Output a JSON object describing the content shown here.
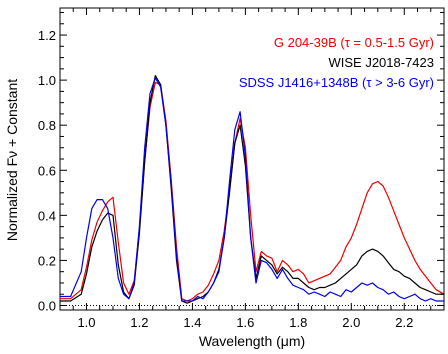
{
  "chart_data": {
    "type": "line",
    "xlabel": "Wavelength (μm)",
    "ylabel": "Normalized Fν + Constant",
    "xlim": [
      0.9,
      2.35
    ],
    "ylim": [
      -0.02,
      1.32
    ],
    "x_ticks": [
      1.0,
      1.2,
      1.4,
      1.6,
      1.8,
      2.0,
      2.2
    ],
    "x_tick_labels": [
      "1.0",
      "1.2",
      "1.4",
      "1.6",
      "1.8",
      "2.0",
      "2.2"
    ],
    "y_ticks": [
      0.0,
      0.2,
      0.4,
      0.6,
      0.8,
      1.0,
      1.2
    ],
    "y_tick_labels": [
      "0.0",
      "0.2",
      "0.4",
      "0.6",
      "0.8",
      "1.0",
      "1.2"
    ],
    "zero_line": {
      "y": 0.0,
      "style": "dotted"
    },
    "legend_position": "top-right",
    "series": [
      {
        "name": "G 204-39B (τ = 0.5-1.5 Gyr)",
        "color": "#ee0000",
        "x": [
          0.9,
          0.94,
          0.98,
          1.0,
          1.02,
          1.04,
          1.06,
          1.08,
          1.1,
          1.12,
          1.14,
          1.16,
          1.18,
          1.2,
          1.22,
          1.24,
          1.26,
          1.28,
          1.3,
          1.32,
          1.34,
          1.36,
          1.38,
          1.4,
          1.42,
          1.44,
          1.46,
          1.48,
          1.5,
          1.52,
          1.54,
          1.56,
          1.58,
          1.6,
          1.62,
          1.64,
          1.66,
          1.68,
          1.7,
          1.72,
          1.74,
          1.76,
          1.78,
          1.8,
          1.82,
          1.84,
          1.86,
          1.88,
          1.9,
          1.92,
          1.94,
          1.96,
          1.98,
          2.0,
          2.02,
          2.04,
          2.06,
          2.08,
          2.1,
          2.12,
          2.14,
          2.16,
          2.18,
          2.2,
          2.22,
          2.24,
          2.26,
          2.28,
          2.3,
          2.32,
          2.35
        ],
        "y": [
          0.03,
          0.03,
          0.07,
          0.17,
          0.29,
          0.37,
          0.42,
          0.46,
          0.48,
          0.28,
          0.1,
          0.05,
          0.11,
          0.34,
          0.64,
          0.88,
          0.99,
          0.98,
          0.82,
          0.56,
          0.26,
          0.03,
          0.02,
          0.03,
          0.05,
          0.06,
          0.09,
          0.14,
          0.2,
          0.33,
          0.51,
          0.72,
          0.83,
          0.7,
          0.4,
          0.15,
          0.24,
          0.22,
          0.21,
          0.15,
          0.2,
          0.18,
          0.15,
          0.16,
          0.14,
          0.1,
          0.11,
          0.12,
          0.13,
          0.14,
          0.17,
          0.2,
          0.26,
          0.3,
          0.36,
          0.43,
          0.5,
          0.54,
          0.55,
          0.53,
          0.48,
          0.42,
          0.36,
          0.3,
          0.25,
          0.2,
          0.16,
          0.13,
          0.1,
          0.07,
          0.05
        ]
      },
      {
        "name": "WISE J2018-7423",
        "color": "#000000",
        "x": [
          0.9,
          0.94,
          0.98,
          1.0,
          1.02,
          1.04,
          1.06,
          1.08,
          1.1,
          1.12,
          1.14,
          1.16,
          1.18,
          1.2,
          1.22,
          1.24,
          1.26,
          1.28,
          1.3,
          1.32,
          1.34,
          1.36,
          1.38,
          1.4,
          1.42,
          1.44,
          1.46,
          1.48,
          1.5,
          1.52,
          1.54,
          1.56,
          1.58,
          1.6,
          1.62,
          1.64,
          1.66,
          1.68,
          1.7,
          1.72,
          1.74,
          1.76,
          1.78,
          1.8,
          1.82,
          1.84,
          1.86,
          1.88,
          1.9,
          1.92,
          1.94,
          1.96,
          1.98,
          2.0,
          2.02,
          2.04,
          2.06,
          2.08,
          2.1,
          2.12,
          2.14,
          2.16,
          2.18,
          2.2,
          2.22,
          2.24,
          2.26,
          2.28,
          2.3,
          2.32,
          2.35
        ],
        "y": [
          0.02,
          0.02,
          0.05,
          0.14,
          0.26,
          0.33,
          0.38,
          0.41,
          0.4,
          0.18,
          0.06,
          0.03,
          0.09,
          0.32,
          0.64,
          0.9,
          1.02,
          0.98,
          0.8,
          0.52,
          0.2,
          0.02,
          0.01,
          0.02,
          0.03,
          0.04,
          0.06,
          0.1,
          0.16,
          0.3,
          0.5,
          0.72,
          0.8,
          0.62,
          0.3,
          0.12,
          0.22,
          0.2,
          0.18,
          0.14,
          0.17,
          0.15,
          0.12,
          0.12,
          0.1,
          0.08,
          0.07,
          0.08,
          0.08,
          0.09,
          0.1,
          0.12,
          0.14,
          0.16,
          0.18,
          0.22,
          0.24,
          0.25,
          0.24,
          0.22,
          0.19,
          0.16,
          0.15,
          0.13,
          0.12,
          0.1,
          0.08,
          0.07,
          0.06,
          0.05,
          0.05
        ]
      },
      {
        "name": "SDSS J1416+1348B (τ > 3-6 Gyr)",
        "color": "#0000ee",
        "x": [
          0.9,
          0.94,
          0.98,
          1.0,
          1.02,
          1.04,
          1.06,
          1.08,
          1.1,
          1.12,
          1.14,
          1.16,
          1.18,
          1.2,
          1.22,
          1.24,
          1.26,
          1.28,
          1.3,
          1.32,
          1.34,
          1.36,
          1.38,
          1.4,
          1.42,
          1.44,
          1.46,
          1.48,
          1.5,
          1.52,
          1.54,
          1.56,
          1.58,
          1.6,
          1.62,
          1.64,
          1.66,
          1.68,
          1.7,
          1.72,
          1.74,
          1.76,
          1.78,
          1.8,
          1.82,
          1.84,
          1.86,
          1.88,
          1.9,
          1.92,
          1.94,
          1.96,
          1.98,
          2.0,
          2.02,
          2.04,
          2.06,
          2.08,
          2.1,
          2.12,
          2.14,
          2.16,
          2.18,
          2.2,
          2.22,
          2.24,
          2.26,
          2.28,
          2.3,
          2.32,
          2.35
        ],
        "y": [
          0.04,
          0.04,
          0.15,
          0.3,
          0.43,
          0.47,
          0.47,
          0.43,
          0.3,
          0.12,
          0.05,
          0.03,
          0.1,
          0.35,
          0.7,
          0.94,
          1.01,
          0.97,
          0.8,
          0.54,
          0.22,
          0.02,
          0.02,
          0.02,
          0.04,
          0.03,
          0.06,
          0.1,
          0.15,
          0.3,
          0.55,
          0.78,
          0.86,
          0.66,
          0.3,
          0.1,
          0.2,
          0.19,
          0.16,
          0.12,
          0.16,
          0.12,
          0.09,
          0.08,
          0.07,
          0.05,
          0.06,
          0.05,
          0.04,
          0.06,
          0.05,
          0.04,
          0.07,
          0.06,
          0.08,
          0.1,
          0.09,
          0.1,
          0.08,
          0.07,
          0.05,
          0.06,
          0.04,
          0.03,
          0.04,
          0.05,
          0.03,
          0.02,
          0.03,
          0.02,
          0.02
        ]
      }
    ]
  }
}
